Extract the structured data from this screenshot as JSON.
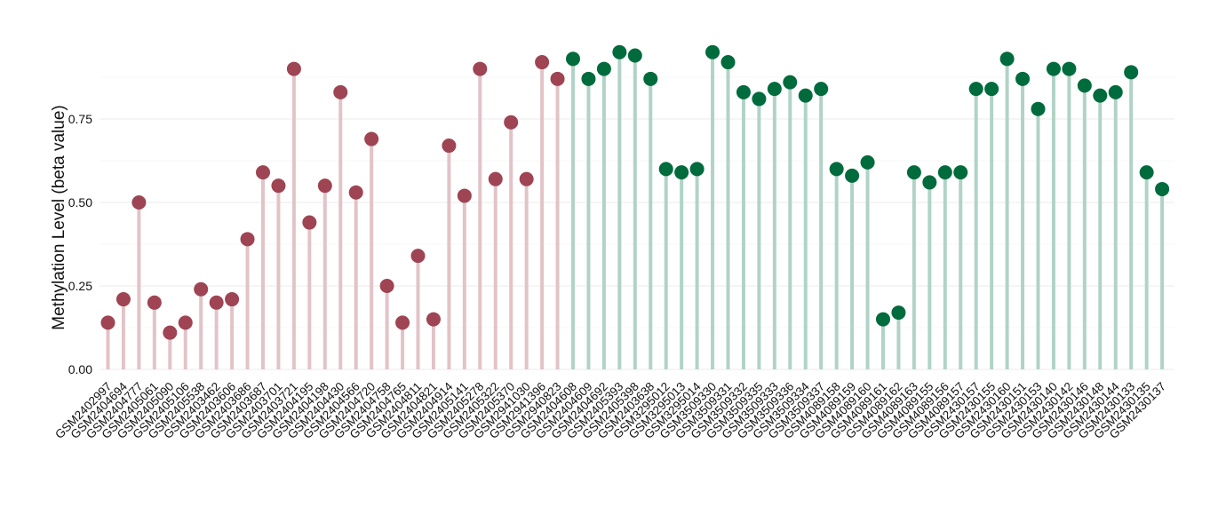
{
  "chart_data": {
    "type": "lollipop",
    "xlabel": "",
    "ylabel": "Methylation Level (beta value)",
    "ylim": [
      0,
      0.96
    ],
    "yticks": [
      0.0,
      0.25,
      0.5,
      0.75
    ],
    "ytick_labels": [
      "0.00",
      "0.25",
      "0.50",
      "0.75"
    ],
    "grid": true,
    "legend": "none",
    "colors": {
      "group1_point": "#9e4452",
      "group1_stem": "#e2c3c8",
      "group2_point": "#006b3c",
      "group2_stem": "#b1d3c7"
    },
    "points": [
      {
        "label": "GSM2402997",
        "value": 0.14,
        "group": 1
      },
      {
        "label": "GSM2404694",
        "value": 0.21,
        "group": 1
      },
      {
        "label": "GSM2404777",
        "value": 0.5,
        "group": 1
      },
      {
        "label": "GSM2405061",
        "value": 0.2,
        "group": 1
      },
      {
        "label": "GSM2405090",
        "value": 0.11,
        "group": 1
      },
      {
        "label": "GSM2405106",
        "value": 0.14,
        "group": 1
      },
      {
        "label": "GSM2405538",
        "value": 0.24,
        "group": 1
      },
      {
        "label": "GSM2403462",
        "value": 0.2,
        "group": 1
      },
      {
        "label": "GSM2403606",
        "value": 0.21,
        "group": 1
      },
      {
        "label": "GSM2403686",
        "value": 0.39,
        "group": 1
      },
      {
        "label": "GSM2403687",
        "value": 0.59,
        "group": 1
      },
      {
        "label": "GSM2403701",
        "value": 0.55,
        "group": 1
      },
      {
        "label": "GSM2403721",
        "value": 0.9,
        "group": 1
      },
      {
        "label": "GSM2404195",
        "value": 0.44,
        "group": 1
      },
      {
        "label": "GSM2404198",
        "value": 0.55,
        "group": 1
      },
      {
        "label": "GSM2404430",
        "value": 0.83,
        "group": 1
      },
      {
        "label": "GSM2404566",
        "value": 0.53,
        "group": 1
      },
      {
        "label": "GSM2404720",
        "value": 0.69,
        "group": 1
      },
      {
        "label": "GSM2404758",
        "value": 0.25,
        "group": 1
      },
      {
        "label": "GSM2404765",
        "value": 0.14,
        "group": 1
      },
      {
        "label": "GSM2404811",
        "value": 0.34,
        "group": 1
      },
      {
        "label": "GSM2404821",
        "value": 0.15,
        "group": 1
      },
      {
        "label": "GSM2404914",
        "value": 0.67,
        "group": 1
      },
      {
        "label": "GSM2405141",
        "value": 0.52,
        "group": 1
      },
      {
        "label": "GSM2405278",
        "value": 0.9,
        "group": 1
      },
      {
        "label": "GSM2405322",
        "value": 0.57,
        "group": 1
      },
      {
        "label": "GSM2405370",
        "value": 0.74,
        "group": 1
      },
      {
        "label": "GSM2941030",
        "value": 0.57,
        "group": 1
      },
      {
        "label": "GSM2941396",
        "value": 0.92,
        "group": 1
      },
      {
        "label": "GSM2940823",
        "value": 0.87,
        "group": 1
      },
      {
        "label": "GSM2404608",
        "value": 0.93,
        "group": 2
      },
      {
        "label": "GSM2404609",
        "value": 0.87,
        "group": 2
      },
      {
        "label": "GSM2404692",
        "value": 0.9,
        "group": 2
      },
      {
        "label": "GSM2405393",
        "value": 0.95,
        "group": 2
      },
      {
        "label": "GSM2405398",
        "value": 0.94,
        "group": 2
      },
      {
        "label": "GSM2403638",
        "value": 0.87,
        "group": 2
      },
      {
        "label": "GSM3295012",
        "value": 0.6,
        "group": 2
      },
      {
        "label": "GSM3295013",
        "value": 0.59,
        "group": 2
      },
      {
        "label": "GSM3295014",
        "value": 0.6,
        "group": 2
      },
      {
        "label": "GSM3509330",
        "value": 0.95,
        "group": 2
      },
      {
        "label": "GSM3509331",
        "value": 0.92,
        "group": 2
      },
      {
        "label": "GSM3509332",
        "value": 0.83,
        "group": 2
      },
      {
        "label": "GSM3509335",
        "value": 0.81,
        "group": 2
      },
      {
        "label": "GSM3509333",
        "value": 0.84,
        "group": 2
      },
      {
        "label": "GSM3509336",
        "value": 0.86,
        "group": 2
      },
      {
        "label": "GSM3509334",
        "value": 0.82,
        "group": 2
      },
      {
        "label": "GSM3509337",
        "value": 0.84,
        "group": 2
      },
      {
        "label": "GSM4089158",
        "value": 0.6,
        "group": 2
      },
      {
        "label": "GSM4089159",
        "value": 0.58,
        "group": 2
      },
      {
        "label": "GSM4089160",
        "value": 0.62,
        "group": 2
      },
      {
        "label": "GSM4089161",
        "value": 0.15,
        "group": 2
      },
      {
        "label": "GSM4089162",
        "value": 0.17,
        "group": 2
      },
      {
        "label": "GSM4089163",
        "value": 0.59,
        "group": 2
      },
      {
        "label": "GSM4089155",
        "value": 0.56,
        "group": 2
      },
      {
        "label": "GSM4089156",
        "value": 0.59,
        "group": 2
      },
      {
        "label": "GSM4089157",
        "value": 0.59,
        "group": 2
      },
      {
        "label": "GSM2430157",
        "value": 0.84,
        "group": 2
      },
      {
        "label": "GSM2430155",
        "value": 0.84,
        "group": 2
      },
      {
        "label": "GSM2430160",
        "value": 0.93,
        "group": 2
      },
      {
        "label": "GSM2430151",
        "value": 0.87,
        "group": 2
      },
      {
        "label": "GSM2430153",
        "value": 0.78,
        "group": 2
      },
      {
        "label": "GSM2430140",
        "value": 0.9,
        "group": 2
      },
      {
        "label": "GSM2430142",
        "value": 0.9,
        "group": 2
      },
      {
        "label": "GSM2430146",
        "value": 0.85,
        "group": 2
      },
      {
        "label": "GSM2430148",
        "value": 0.82,
        "group": 2
      },
      {
        "label": "GSM2430144",
        "value": 0.83,
        "group": 2
      },
      {
        "label": "GSM2430133",
        "value": 0.89,
        "group": 2
      },
      {
        "label": "GSM2430135",
        "value": 0.59,
        "group": 2
      },
      {
        "label": "GSM2430137",
        "value": 0.54,
        "group": 2
      }
    ]
  }
}
